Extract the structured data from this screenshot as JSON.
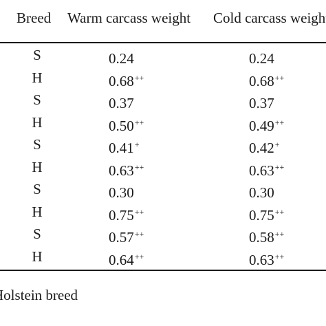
{
  "header": {
    "breed": "Breed",
    "warm": "Warm carcass weight",
    "cold": "Cold carcass weight"
  },
  "rows": [
    {
      "breed": "S",
      "warm": "0.24",
      "warm_sig": "",
      "cold": "0.24",
      "cold_sig": ""
    },
    {
      "breed": "H",
      "warm": "0.68",
      "warm_sig": "++",
      "cold": "0.68",
      "cold_sig": "++"
    },
    {
      "breed": "S",
      "warm": "0.37",
      "warm_sig": "",
      "cold": "0.37",
      "cold_sig": ""
    },
    {
      "breed": "H",
      "warm": "0.50",
      "warm_sig": "++",
      "cold": "0.49",
      "cold_sig": "++"
    },
    {
      "breed": "S",
      "warm": "0.41",
      "warm_sig": "+",
      "cold": "0.42",
      "cold_sig": "+"
    },
    {
      "breed": "H",
      "warm": "0.63",
      "warm_sig": "++",
      "cold": "0.63",
      "cold_sig": "++"
    },
    {
      "breed": "S",
      "warm": "0.30",
      "warm_sig": "",
      "cold": "0.30",
      "cold_sig": ""
    },
    {
      "breed": "H",
      "warm": "0.75",
      "warm_sig": "++",
      "cold": "0.75",
      "cold_sig": "++"
    },
    {
      "breed": "S",
      "warm": "0.57",
      "warm_sig": "++",
      "cold": "0.58",
      "cold_sig": "++"
    },
    {
      "breed": "H",
      "warm": "0.64",
      "warm_sig": "++",
      "cold": "0.63",
      "cold_sig": "++"
    }
  ],
  "footnote": "Holstein breed"
}
